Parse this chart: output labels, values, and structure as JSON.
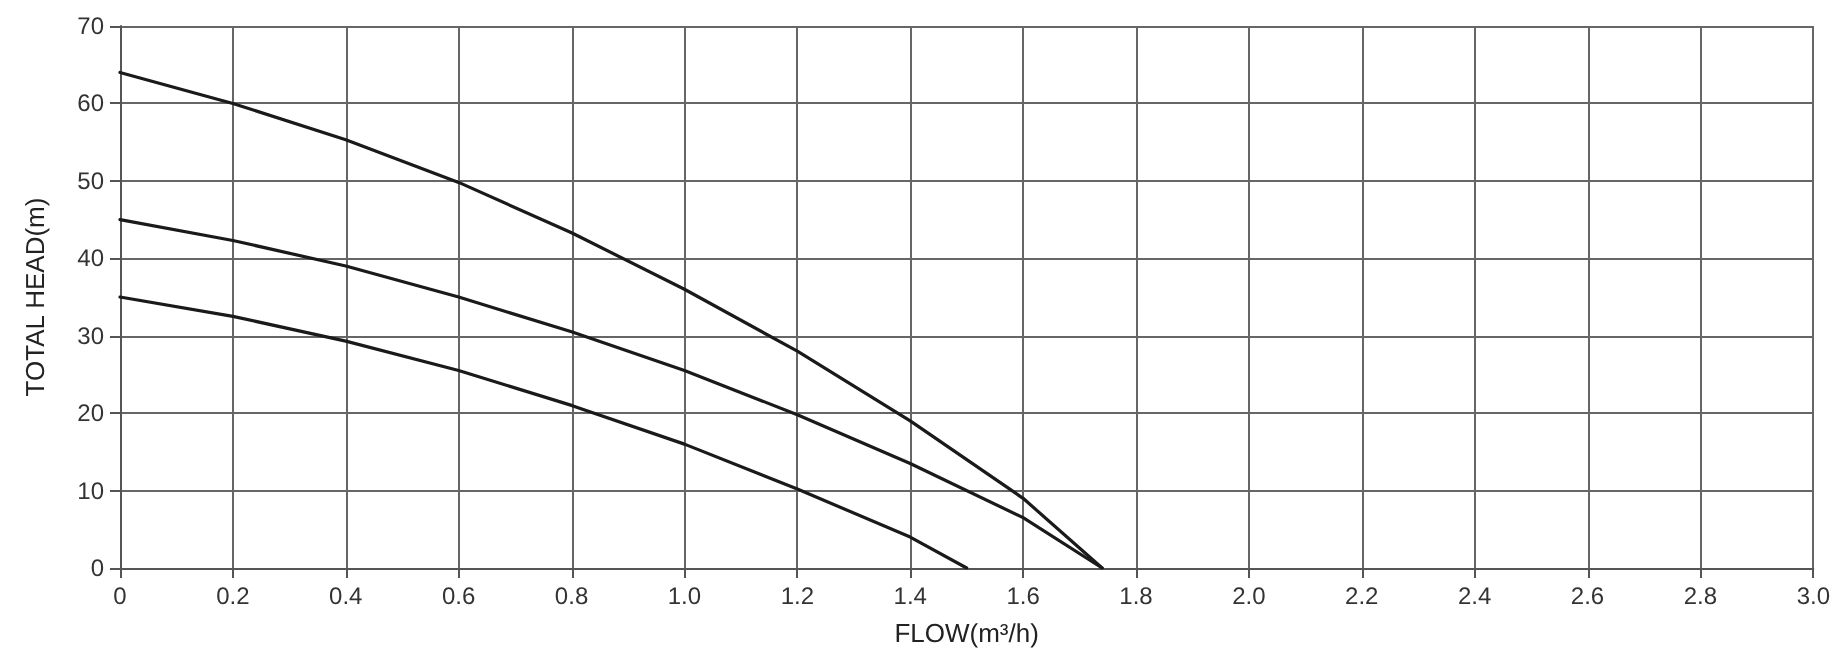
{
  "chart_data": {
    "type": "line",
    "xlabel": "FLOW(m³/h)",
    "ylabel": "TOTAL HEAD(m)",
    "xlim": [
      0,
      3.0
    ],
    "xticks": [
      0,
      0.2,
      0.4,
      0.6,
      0.8,
      {
        "value": 1,
        "label": "1.0"
      },
      1.2,
      1.4,
      1.6,
      1.8,
      {
        "value": 2,
        "label": "2.0"
      },
      2.2,
      2.4,
      2.6,
      2.8,
      {
        "value": 3,
        "label": "3.0"
      }
    ],
    "ylim": [
      0,
      70
    ],
    "yticks": [
      0,
      10,
      20,
      30,
      40,
      50,
      60,
      70
    ],
    "grid": true,
    "marker": "none",
    "line_style": "solid",
    "series": [
      {
        "color": "#1a1a1a",
        "x": [
          0,
          0.2,
          0.4,
          0.6,
          0.8,
          1.0,
          1.2,
          1.4,
          1.6,
          1.74
        ],
        "values": [
          64,
          60,
          55.3,
          49.8,
          43.3,
          36,
          28,
          19,
          9,
          0
        ]
      },
      {
        "color": "#1a1a1a",
        "x": [
          0,
          0.2,
          0.4,
          0.6,
          0.8,
          1.0,
          1.2,
          1.4,
          1.6,
          1.74
        ],
        "values": [
          45,
          42.3,
          39,
          35,
          30.5,
          25.5,
          19.8,
          13.5,
          6.5,
          0
        ]
      },
      {
        "color": "#1a1a1a",
        "x": [
          0,
          0.2,
          0.4,
          0.6,
          0.8,
          1.0,
          1.2,
          1.4,
          1.5
        ],
        "values": [
          35,
          32.5,
          29.3,
          25.5,
          21,
          16,
          10.2,
          4,
          0
        ]
      }
    ]
  }
}
